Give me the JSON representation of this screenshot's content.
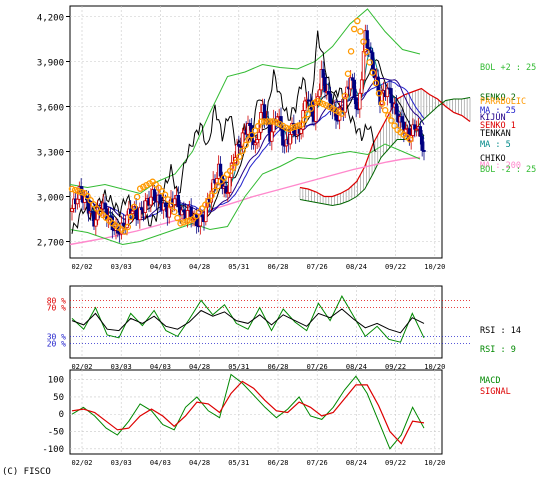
{
  "copyright": "(C) FISCO",
  "x_tick_labels": [
    "02/02",
    "03/03",
    "04/03",
    "04/28",
    "05/31",
    "06/28",
    "07/26",
    "08/24",
    "09/22",
    "10/20"
  ],
  "colors": {
    "grid": "#c8c8c8",
    "candle_up": "#d00000",
    "candle_down": "#000080",
    "bol_upper": "#33bb33",
    "bol_lower": "#33bb33",
    "ma25": "#2222cc",
    "ma5": "#008888",
    "ma200": "#ff88cc",
    "tenkan": "#000000",
    "kijun": "#220088",
    "senko1": "#dd0000",
    "senko2": "#006600",
    "chiko": "#000000",
    "sar": "#ff9900",
    "rsi14": "#000000",
    "rsi9": "#008800",
    "macd": "#008800",
    "signal": "#dd0000"
  },
  "chart_data": [
    {
      "type": "candlestick",
      "y_ticks": [
        2700,
        3000,
        3300,
        3600,
        3900,
        4200
      ],
      "ylim": [
        2590,
        4270
      ],
      "legend": [
        {
          "key": "bol_up",
          "text": "BOL +2 : 25",
          "color": "#33bb33"
        },
        {
          "key": "senko2",
          "text": "SENKO 2",
          "color": "#006600"
        },
        {
          "key": "parabolic",
          "text": "PARABOLIC",
          "color": "#ff9900"
        },
        {
          "key": "ma25",
          "text": "MA : 25",
          "color": "#2222cc"
        },
        {
          "key": "kijun",
          "text": "KIJUN",
          "color": "#220088"
        },
        {
          "key": "senko1",
          "text": "SENKO 1",
          "color": "#dd0000"
        },
        {
          "key": "tenkan",
          "text": "TENKAN",
          "color": "#000000"
        },
        {
          "key": "ma5",
          "text": "MA : 5",
          "color": "#008888"
        },
        {
          "key": "chiko",
          "text": "CHIKO",
          "color": "#000000"
        },
        {
          "key": "ma200",
          "text": "MA : 200",
          "color": "#ff88cc"
        },
        {
          "key": "bol_dn",
          "text": "BOL -2 : 25",
          "color": "#33bb33"
        }
      ],
      "close_anchors": [
        2920,
        3030,
        2960,
        2830,
        2950,
        2860,
        2760,
        2800,
        2920,
        2870,
        2950,
        3010,
        2960,
        2900,
        3000,
        2880,
        2900,
        2820,
        2870,
        3040,
        3180,
        3000,
        3250,
        3370,
        3480,
        3320,
        3600,
        3400,
        3560,
        3320,
        3450,
        3420,
        3680,
        3520,
        3820,
        3650,
        3520,
        3600,
        3800,
        3550,
        4080,
        3870,
        3650,
        3720,
        3580,
        3480,
        3400,
        3480,
        3300
      ],
      "ma200": [
        2680,
        2700,
        2720,
        2745,
        2770,
        2800,
        2830,
        2860,
        2895,
        2930,
        2965,
        3000,
        3030,
        3060,
        3090,
        3120,
        3150,
        3180,
        3205,
        3230,
        3250,
        3260
      ],
      "bol_upper": [
        3080,
        3060,
        3080,
        3050,
        3020,
        3100,
        3150,
        3300,
        3560,
        3800,
        3830,
        3880,
        3860,
        3850,
        3900,
        4000,
        4150,
        4250,
        4100,
        3980,
        3950
      ],
      "bol_lower": [
        2780,
        2760,
        2720,
        2680,
        2700,
        2740,
        2780,
        2820,
        2780,
        2800,
        3000,
        3150,
        3200,
        3260,
        3250,
        3280,
        3300,
        3280,
        3350,
        3300,
        3250
      ],
      "cloud_upper": [
        3060,
        3050,
        3030,
        3000,
        3000,
        3020,
        3050,
        3100,
        3200,
        3350,
        3450,
        3550,
        3650,
        3680,
        3700,
        3720,
        3680,
        3650,
        3600,
        3560,
        3540,
        3500
      ],
      "cloud_lower": [
        2980,
        2970,
        2960,
        2950,
        2940,
        2950,
        2970,
        3000,
        3050,
        3150,
        3260,
        3320,
        3380,
        3380,
        3420,
        3500,
        3550,
        3600,
        3640,
        3650,
        3650,
        3660
      ],
      "sar": [
        3050,
        3020,
        2900,
        2820,
        2760,
        3050,
        3100,
        3000,
        2820,
        2850,
        2960,
        3100,
        3200,
        3370,
        3500,
        3500,
        3450,
        3480,
        3640,
        3600,
        3550,
        4200,
        3900,
        3600,
        3450,
        3380
      ]
    },
    {
      "type": "line",
      "name": "RSI",
      "ylim": [
        0,
        100
      ],
      "ref_levels": [
        80,
        70,
        30,
        20
      ],
      "ref_labels": [
        "80 %",
        "70 %",
        "30 %",
        "20 %"
      ],
      "legend": [
        {
          "text": "RSI : 14",
          "color": "#000000"
        },
        {
          "text": "RSI : 9",
          "color": "#008800"
        }
      ],
      "series": [
        {
          "name": "RSI : 14",
          "values": [
            52,
            46,
            62,
            40,
            38,
            55,
            48,
            58,
            44,
            40,
            50,
            66,
            58,
            64,
            52,
            48,
            60,
            46,
            60,
            52,
            44,
            62,
            56,
            68,
            54,
            42,
            48,
            40,
            35,
            56,
            48
          ]
        },
        {
          "name": "RSI : 9",
          "values": [
            55,
            40,
            70,
            32,
            28,
            62,
            45,
            66,
            38,
            30,
            54,
            80,
            60,
            74,
            48,
            40,
            70,
            38,
            68,
            50,
            38,
            76,
            52,
            86,
            58,
            30,
            44,
            26,
            22,
            62,
            28
          ]
        }
      ]
    },
    {
      "type": "line",
      "name": "MACD",
      "y_ticks": [
        -100,
        -50,
        0,
        50,
        100
      ],
      "ylim": [
        -115,
        128
      ],
      "legend": [
        {
          "text": "MACD",
          "color": "#008800"
        },
        {
          "text": "SIGNAL",
          "color": "#dd0000"
        }
      ],
      "series": [
        {
          "name": "MACD",
          "values": [
            0,
            20,
            -5,
            -40,
            -60,
            -20,
            30,
            10,
            -30,
            -45,
            20,
            50,
            10,
            -10,
            115,
            90,
            55,
            20,
            -10,
            15,
            50,
            -5,
            -15,
            20,
            70,
            110,
            60,
            -20,
            -100,
            -60,
            20,
            -40
          ]
        },
        {
          "name": "SIGNAL",
          "values": [
            10,
            15,
            5,
            -20,
            -45,
            -40,
            -5,
            15,
            -5,
            -35,
            -5,
            35,
            30,
            5,
            60,
            95,
            75,
            40,
            10,
            5,
            35,
            20,
            -5,
            5,
            45,
            85,
            85,
            25,
            -50,
            -85,
            -20,
            -25
          ]
        }
      ]
    }
  ]
}
